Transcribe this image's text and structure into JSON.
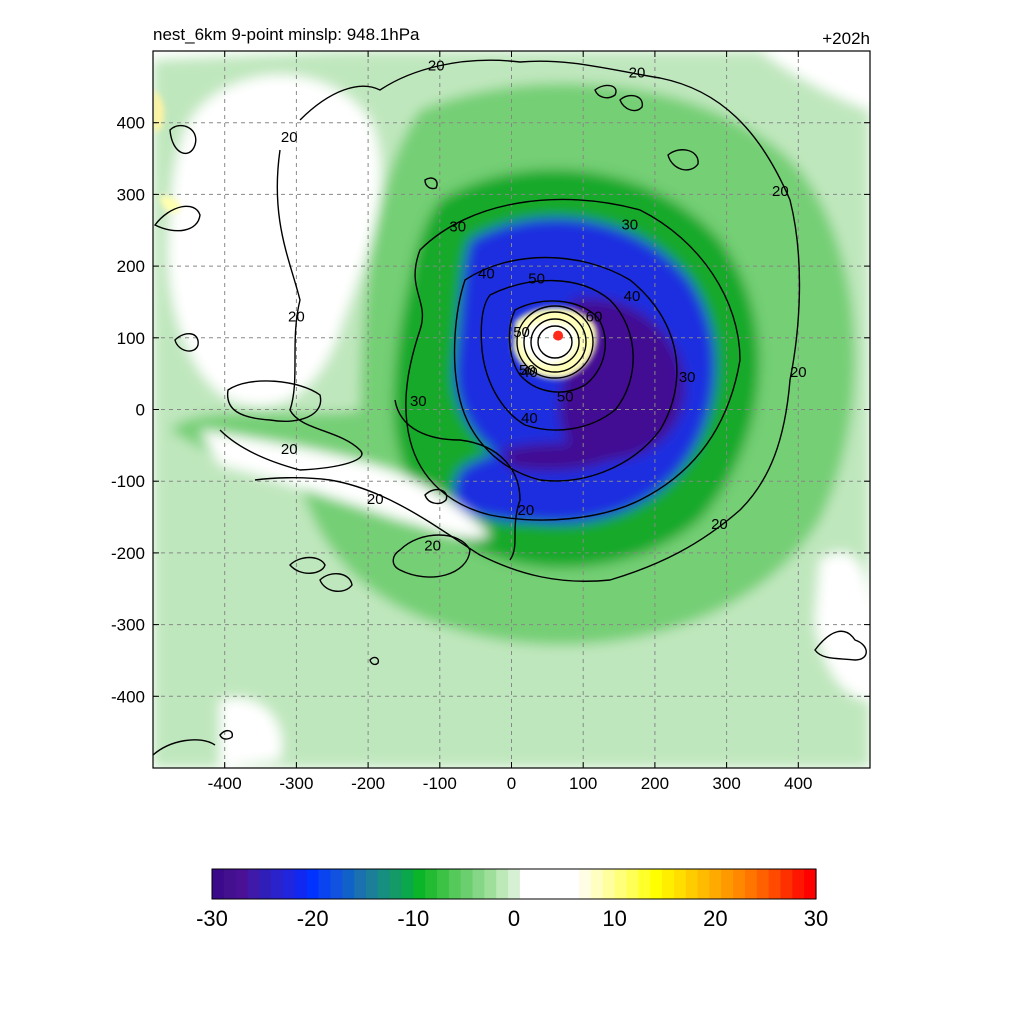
{
  "chart_data": {
    "type": "heatmap",
    "title_left": "nest_6km  9-point minslp: 948.1hPa",
    "title_right": "+202h",
    "xlabel": "",
    "ylabel": "",
    "xlim": [
      -500,
      500
    ],
    "ylim": [
      -500,
      500
    ],
    "xticks": [
      -400,
      -300,
      -200,
      -100,
      0,
      100,
      200,
      300,
      400
    ],
    "yticks": [
      400,
      300,
      200,
      100,
      0,
      -100,
      -200,
      -300,
      -400
    ],
    "grid": true,
    "center_marker": {
      "x": 65,
      "y": 103,
      "color": "#ff2a1a"
    },
    "contour_levels": [
      20,
      30,
      40,
      50,
      60
    ],
    "contour_labels": [
      {
        "text": "20",
        "x": -105,
        "y": 480
      },
      {
        "text": "20",
        "x": 175,
        "y": 470
      },
      {
        "text": "20",
        "x": -310,
        "y": 380
      },
      {
        "text": "20",
        "x": 375,
        "y": 305
      },
      {
        "text": "20",
        "x": -300,
        "y": 130
      },
      {
        "text": "20",
        "x": 400,
        "y": 52
      },
      {
        "text": "20",
        "x": -310,
        "y": -55
      },
      {
        "text": "20",
        "x": -190,
        "y": -125
      },
      {
        "text": "20",
        "x": 20,
        "y": -140
      },
      {
        "text": "20",
        "x": 290,
        "y": -160
      },
      {
        "text": "20",
        "x": -110,
        "y": -190
      },
      {
        "text": "30",
        "x": -75,
        "y": 255
      },
      {
        "text": "30",
        "x": 165,
        "y": 258
      },
      {
        "text": "30",
        "x": 245,
        "y": 45
      },
      {
        "text": "30",
        "x": -130,
        "y": 12
      },
      {
        "text": "40",
        "x": -35,
        "y": 190
      },
      {
        "text": "40",
        "x": 168,
        "y": 158
      },
      {
        "text": "40",
        "x": 25,
        "y": 52
      },
      {
        "text": "40",
        "x": 25,
        "y": -12
      },
      {
        "text": "50",
        "x": 35,
        "y": 183
      },
      {
        "text": "50",
        "x": 14,
        "y": 108
      },
      {
        "text": "50",
        "x": 22,
        "y": 55
      },
      {
        "text": "50",
        "x": 75,
        "y": 18
      },
      {
        "text": "60",
        "x": 115,
        "y": 130
      }
    ],
    "colorbar": {
      "min": -30,
      "max": 30,
      "ticks": [
        -30,
        -20,
        -10,
        0,
        10,
        20,
        30
      ],
      "tick_labels": [
        "-30",
        "-20",
        "-10",
        "0",
        "10",
        "20",
        "30"
      ],
      "colors": [
        "#3b0a8a",
        "#43108f",
        "#4a1196",
        "#3f1aa8",
        "#2f1eb8",
        "#2a23cb",
        "#1f26dd",
        "#1028ef",
        "#0033ff",
        "#0a44f0",
        "#1153e0",
        "#1162c8",
        "#1b70b0",
        "#1b7f9a",
        "#168e80",
        "#139a66",
        "#0aa84a",
        "#0ab52a",
        "#22bb32",
        "#3cc244",
        "#55c95a",
        "#6ccf6f",
        "#85d686",
        "#9fdf9c",
        "#bde8b8",
        "#d6f0d3",
        "#ffffff",
        "#ffffff",
        "#ffffff",
        "#ffffff",
        "#ffffff",
        "#fffde3",
        "#ffffc2",
        "#ffff9e",
        "#ffff7a",
        "#ffff55",
        "#ffff2a",
        "#ffff00",
        "#ffee00",
        "#ffde00",
        "#ffcc00",
        "#ffbb00",
        "#ffaa00",
        "#ff9900",
        "#ff8800",
        "#ff7500",
        "#ff6000",
        "#ff4a00",
        "#ff3000",
        "#ff1600",
        "#ff0000"
      ]
    },
    "fill_colors": {
      "green_light": "#c8ecc6",
      "green_mid": "#7fd27f",
      "green_deep": "#17ad2e",
      "blue": "#1d2ee0",
      "purple": "#430f93",
      "yellow_light": "#ffffb0"
    }
  }
}
